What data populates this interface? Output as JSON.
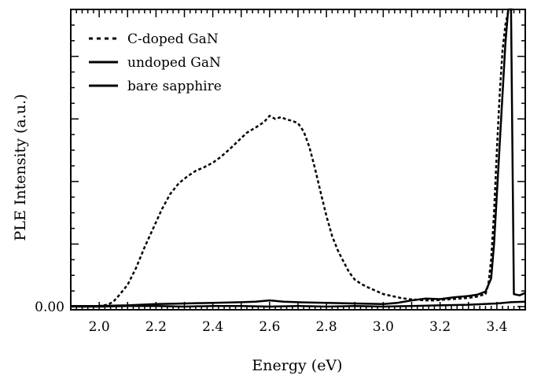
{
  "chart_data": {
    "type": "line",
    "title": "",
    "xlabel": "Energy (eV)",
    "ylabel": "PLE Intensity (a.u.)",
    "xlim": [
      1.9,
      3.5
    ],
    "ylim": [
      -0.05,
      4.75
    ],
    "x_ticks": [
      2.0,
      2.2,
      2.4,
      2.6,
      2.8,
      3.0,
      3.2,
      3.4
    ],
    "x_tick_labels": [
      "2.0",
      "2.2",
      "2.4",
      "2.6",
      "2.8",
      "3.0",
      "3.2",
      "3.4"
    ],
    "y_tick_labels": [
      "0.00"
    ],
    "y_tick_values": [
      0
    ],
    "grid": false,
    "legend_position": "top-left",
    "series": [
      {
        "name": "C-doped GaN",
        "style": "dashed",
        "color": "#000000",
        "x": [
          1.9,
          1.95,
          2.0,
          2.03,
          2.05,
          2.07,
          2.1,
          2.13,
          2.16,
          2.19,
          2.22,
          2.25,
          2.28,
          2.31,
          2.34,
          2.37,
          2.4,
          2.43,
          2.46,
          2.49,
          2.52,
          2.55,
          2.58,
          2.6,
          2.62,
          2.64,
          2.66,
          2.68,
          2.7,
          2.72,
          2.74,
          2.76,
          2.78,
          2.8,
          2.82,
          2.84,
          2.86,
          2.88,
          2.9,
          2.92,
          2.94,
          2.96,
          2.98,
          3.0,
          3.03,
          3.06,
          3.09,
          3.12,
          3.15,
          3.18,
          3.21,
          3.24,
          3.27,
          3.3,
          3.33,
          3.36,
          3.37,
          3.38,
          3.39,
          3.4,
          3.41,
          3.42,
          3.43,
          3.44,
          3.45,
          3.46
        ],
        "y": [
          0.01,
          0.0,
          0.01,
          0.03,
          0.08,
          0.18,
          0.35,
          0.62,
          0.95,
          1.25,
          1.55,
          1.8,
          1.97,
          2.08,
          2.17,
          2.23,
          2.3,
          2.4,
          2.52,
          2.65,
          2.78,
          2.86,
          2.95,
          3.05,
          3.0,
          3.03,
          2.99,
          2.97,
          2.93,
          2.8,
          2.55,
          2.2,
          1.82,
          1.45,
          1.13,
          0.9,
          0.72,
          0.55,
          0.43,
          0.37,
          0.32,
          0.28,
          0.24,
          0.2,
          0.17,
          0.14,
          0.12,
          0.11,
          0.1,
          0.1,
          0.11,
          0.12,
          0.13,
          0.14,
          0.16,
          0.2,
          0.35,
          0.75,
          1.5,
          2.5,
          3.4,
          4.1,
          4.5,
          4.72,
          4.75,
          4.75
        ]
      },
      {
        "name": "undoped GaN",
        "style": "solid",
        "color": "#000000",
        "x": [
          1.9,
          2.0,
          2.1,
          2.2,
          2.3,
          2.4,
          2.5,
          2.55,
          2.6,
          2.65,
          2.7,
          2.8,
          2.9,
          3.0,
          3.05,
          3.1,
          3.15,
          3.2,
          3.25,
          3.3,
          3.33,
          3.36,
          3.38,
          3.39,
          3.4,
          3.41,
          3.42,
          3.43,
          3.44,
          3.45,
          3.46,
          3.48,
          3.5
        ],
        "y": [
          0.01,
          0.01,
          0.02,
          0.04,
          0.05,
          0.06,
          0.07,
          0.08,
          0.1,
          0.08,
          0.07,
          0.06,
          0.05,
          0.04,
          0.06,
          0.1,
          0.13,
          0.12,
          0.15,
          0.17,
          0.19,
          0.24,
          0.45,
          1.0,
          1.8,
          2.6,
          3.4,
          4.2,
          4.75,
          4.75,
          0.2,
          0.18,
          0.22
        ]
      },
      {
        "name": "bare sapphire",
        "style": "solid",
        "color": "#000000",
        "x": [
          1.9,
          2.0,
          2.1,
          2.2,
          2.3,
          2.4,
          2.5,
          2.6,
          2.7,
          2.8,
          2.9,
          3.0,
          3.1,
          3.2,
          3.3,
          3.4,
          3.45,
          3.5
        ],
        "y": [
          0.0,
          0.0,
          0.01,
          0.01,
          0.0,
          0.01,
          0.01,
          0.0,
          0.01,
          0.0,
          0.01,
          0.0,
          0.01,
          0.02,
          0.03,
          0.05,
          0.07,
          0.08
        ]
      }
    ]
  }
}
